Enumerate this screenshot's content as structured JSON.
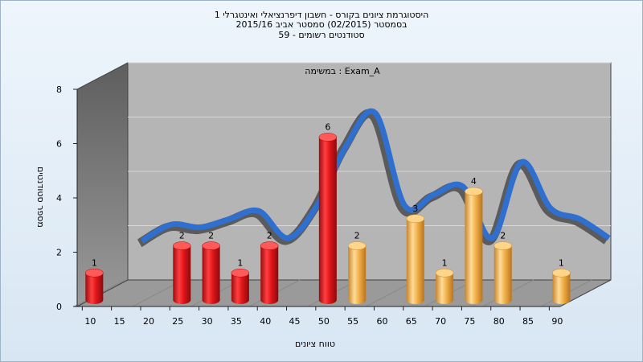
{
  "titles": {
    "line1": "היסטוגרמת ציונים בקורס - חשבון דיפרנציאלי ואינטגרלי 1",
    "line2": "בסמסטר  (02/2015)  סמסטר אביב 2015/16",
    "line3": "סטודנטים רשומים - 59"
  },
  "chart_data": {
    "type": "bar",
    "title": "היסטוגרמת ציונים בקורס - חשבון דיפרנציאלי ואינטגרלי 1",
    "subtitle": "בסמסטר  (02/2015)  סמסטר אביב 2015/16 / סטודנטים רשומים - 59",
    "annotation": "Exam_A : במשימה",
    "xlabel": "טווח ציונים",
    "ylabel": "מספר סטודנטים",
    "ylim": [
      0,
      8
    ],
    "yticks": [
      0,
      2,
      4,
      6,
      8
    ],
    "x_ticks": [
      10,
      15,
      20,
      25,
      30,
      35,
      40,
      45,
      50,
      55,
      60,
      65,
      70,
      75,
      80,
      85,
      90
    ],
    "bars": [
      {
        "x": 10,
        "value": 1,
        "color": "red"
      },
      {
        "x": 25,
        "value": 2,
        "color": "red"
      },
      {
        "x": 30,
        "value": 2,
        "color": "red"
      },
      {
        "x": 35,
        "value": 1,
        "color": "red"
      },
      {
        "x": 40,
        "value": 2,
        "color": "red"
      },
      {
        "x": 50,
        "value": 6,
        "color": "red"
      },
      {
        "x": 55,
        "value": 2,
        "color": "orange"
      },
      {
        "x": 65,
        "value": 3,
        "color": "orange"
      },
      {
        "x": 70,
        "value": 1,
        "color": "orange"
      },
      {
        "x": 75,
        "value": 4,
        "color": "orange"
      },
      {
        "x": 80,
        "value": 2,
        "color": "orange"
      },
      {
        "x": 90,
        "value": 1,
        "color": "orange"
      }
    ],
    "curve": {
      "x": [
        15,
        20,
        25,
        30,
        35,
        40,
        45,
        50,
        55,
        60,
        65,
        70,
        75,
        80,
        85,
        90,
        95
      ],
      "values": [
        1.5,
        2.1,
        2.0,
        2.3,
        2.6,
        1.6,
        2.8,
        5.0,
        6.2,
        2.8,
        3.2,
        3.5,
        1.6,
        4.4,
        2.7,
        2.3,
        1.6
      ]
    },
    "grid": true,
    "colors": {
      "red": "#e0161a",
      "orange": "#f2b24a",
      "curve_front": "#2f6fd0",
      "curve_back": "#5b5b5b",
      "back_wall": "#b5b5b5",
      "side_wall": "#7a7a7a",
      "floor": "#9a9a9a"
    }
  }
}
